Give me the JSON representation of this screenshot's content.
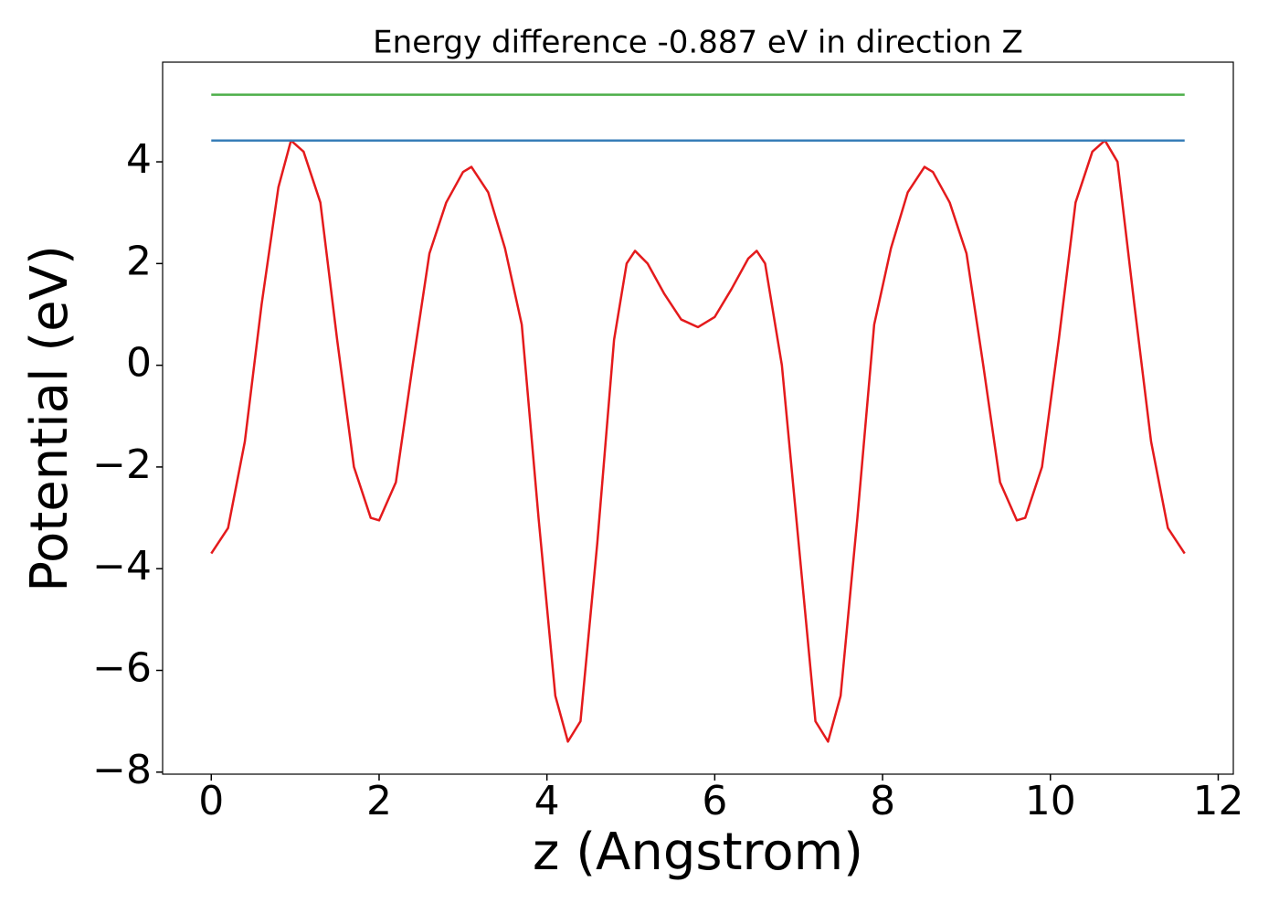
{
  "chart_data": {
    "type": "line",
    "title": "Energy difference -0.887 eV in direction Z",
    "xlabel": "z (Angstrom)",
    "ylabel": "Potential (eV)",
    "xlim": [
      -0.58,
      12.18
    ],
    "ylim": [
      -8.04,
      5.96
    ],
    "xticks": [
      0,
      2,
      4,
      6,
      8,
      10,
      12
    ],
    "yticks": [
      {
        "value": -8,
        "label": "−8"
      },
      {
        "value": -6,
        "label": "−6"
      },
      {
        "value": -4,
        "label": "−4"
      },
      {
        "value": -2,
        "label": "−2"
      },
      0,
      2,
      4
    ],
    "series": [
      {
        "color": "#e41a1c",
        "x": [
          0,
          0.2,
          0.4,
          0.6,
          0.8,
          0.95,
          1.1,
          1.3,
          1.5,
          1.7,
          1.9,
          2.0,
          2.2,
          2.4,
          2.6,
          2.8,
          3.0,
          3.1,
          3.3,
          3.5,
          3.7,
          3.9,
          4.1,
          4.25,
          4.4,
          4.6,
          4.8,
          4.95,
          5.05,
          5.2,
          5.4,
          5.6,
          5.8,
          6.0,
          6.2,
          6.4,
          6.5,
          6.6,
          6.8,
          7.0,
          7.2,
          7.35,
          7.5,
          7.7,
          7.9,
          8.1,
          8.3,
          8.5,
          8.6,
          8.8,
          9.0,
          9.2,
          9.4,
          9.6,
          9.7,
          9.9,
          10.1,
          10.3,
          10.5,
          10.65,
          10.8,
          11.0,
          11.2,
          11.4,
          11.6
        ],
        "values": [
          -3.7,
          -3.2,
          -1.5,
          1.2,
          3.5,
          4.42,
          4.2,
          3.2,
          0.5,
          -2.0,
          -3.0,
          -3.05,
          -2.3,
          0.0,
          2.2,
          3.2,
          3.8,
          3.9,
          3.4,
          2.3,
          0.8,
          -3.0,
          -6.5,
          -7.4,
          -7.0,
          -3.5,
          0.5,
          2.0,
          2.25,
          2.0,
          1.4,
          0.9,
          0.75,
          0.95,
          1.5,
          2.1,
          2.25,
          2.0,
          0.0,
          -3.5,
          -7.0,
          -7.4,
          -6.5,
          -3.0,
          0.8,
          2.3,
          3.4,
          3.9,
          3.8,
          3.2,
          2.2,
          0.0,
          -2.3,
          -3.05,
          -3.0,
          -2.0,
          0.5,
          3.2,
          4.2,
          4.42,
          4.0,
          1.2,
          -1.5,
          -3.2,
          -3.7
        ]
      },
      {
        "color": "#377eb8",
        "x": [
          0,
          11.6
        ],
        "values": [
          4.42,
          4.42
        ]
      },
      {
        "color": "#4daf4a",
        "x": [
          0,
          11.6
        ],
        "values": [
          5.32,
          5.32
        ]
      }
    ],
    "grid": false
  }
}
